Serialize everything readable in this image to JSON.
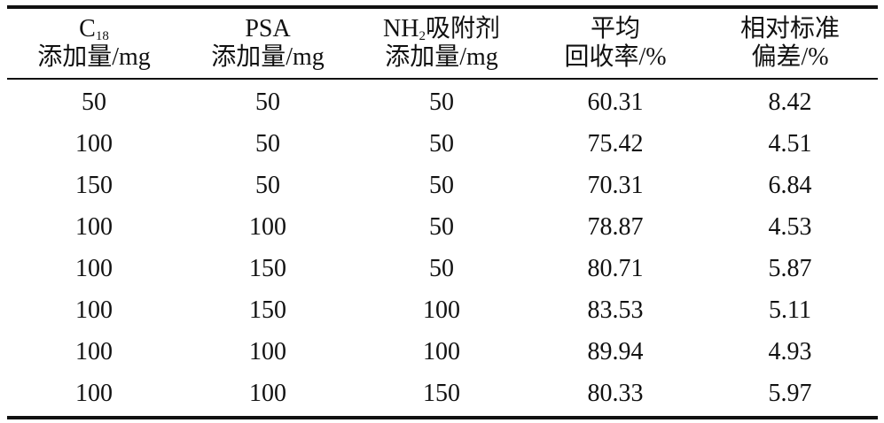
{
  "table": {
    "headers": [
      {
        "line1": "C",
        "line1_sub": "18",
        "line1_post": "",
        "line2": "添加量/mg"
      },
      {
        "line1": "PSA",
        "line1_sub": "",
        "line1_post": "",
        "line2": "添加量/mg"
      },
      {
        "line1": "NH",
        "line1_sub": "2",
        "line1_post": "吸附剂",
        "line2": "添加量/mg"
      },
      {
        "line1": "平均",
        "line1_sub": "",
        "line1_post": "",
        "line2": "回收率/%"
      },
      {
        "line1": "相对标准",
        "line1_sub": "",
        "line1_post": "",
        "line2": "偏差/%"
      }
    ],
    "rows": [
      [
        "50",
        "50",
        "50",
        "60.31",
        "8.42"
      ],
      [
        "100",
        "50",
        "50",
        "75.42",
        "4.51"
      ],
      [
        "150",
        "50",
        "50",
        "70.31",
        "6.84"
      ],
      [
        "100",
        "100",
        "50",
        "78.87",
        "4.53"
      ],
      [
        "100",
        "150",
        "50",
        "80.71",
        "5.87"
      ],
      [
        "100",
        "150",
        "100",
        "83.53",
        "5.11"
      ],
      [
        "100",
        "100",
        "100",
        "89.94",
        "4.93"
      ],
      [
        "100",
        "100",
        "150",
        "80.33",
        "5.97"
      ]
    ]
  }
}
